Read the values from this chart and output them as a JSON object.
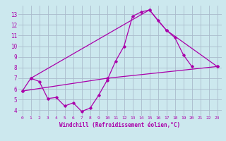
{
  "background_color": "#cce8ee",
  "grid_color": "#aabbcc",
  "line_color": "#aa00aa",
  "xlabel": "Windchill (Refroidissement éolien,°C)",
  "xlim": [
    -0.5,
    23.5
  ],
  "ylim": [
    3.5,
    13.8
  ],
  "yticks": [
    4,
    5,
    6,
    7,
    8,
    9,
    10,
    11,
    12,
    13
  ],
  "xticks": [
    0,
    1,
    2,
    3,
    4,
    5,
    6,
    7,
    8,
    9,
    10,
    11,
    12,
    13,
    14,
    15,
    16,
    17,
    18,
    19,
    20,
    21,
    22,
    23
  ],
  "line1_x": [
    0,
    1,
    2,
    3,
    4,
    5,
    6,
    7,
    8,
    9,
    10,
    11,
    12,
    13,
    14,
    15,
    16,
    17,
    18,
    19,
    20
  ],
  "line1_y": [
    5.8,
    7.0,
    6.7,
    5.1,
    5.2,
    4.4,
    4.7,
    3.9,
    4.2,
    5.4,
    6.8,
    8.6,
    10.0,
    12.8,
    13.2,
    13.4,
    12.4,
    11.5,
    10.8,
    9.2,
    8.1
  ],
  "line2_x": [
    1,
    15,
    17,
    23
  ],
  "line2_y": [
    7.0,
    13.4,
    11.5,
    8.1
  ],
  "line3_x": [
    0,
    10,
    23
  ],
  "line3_y": [
    5.8,
    7.0,
    8.1
  ]
}
